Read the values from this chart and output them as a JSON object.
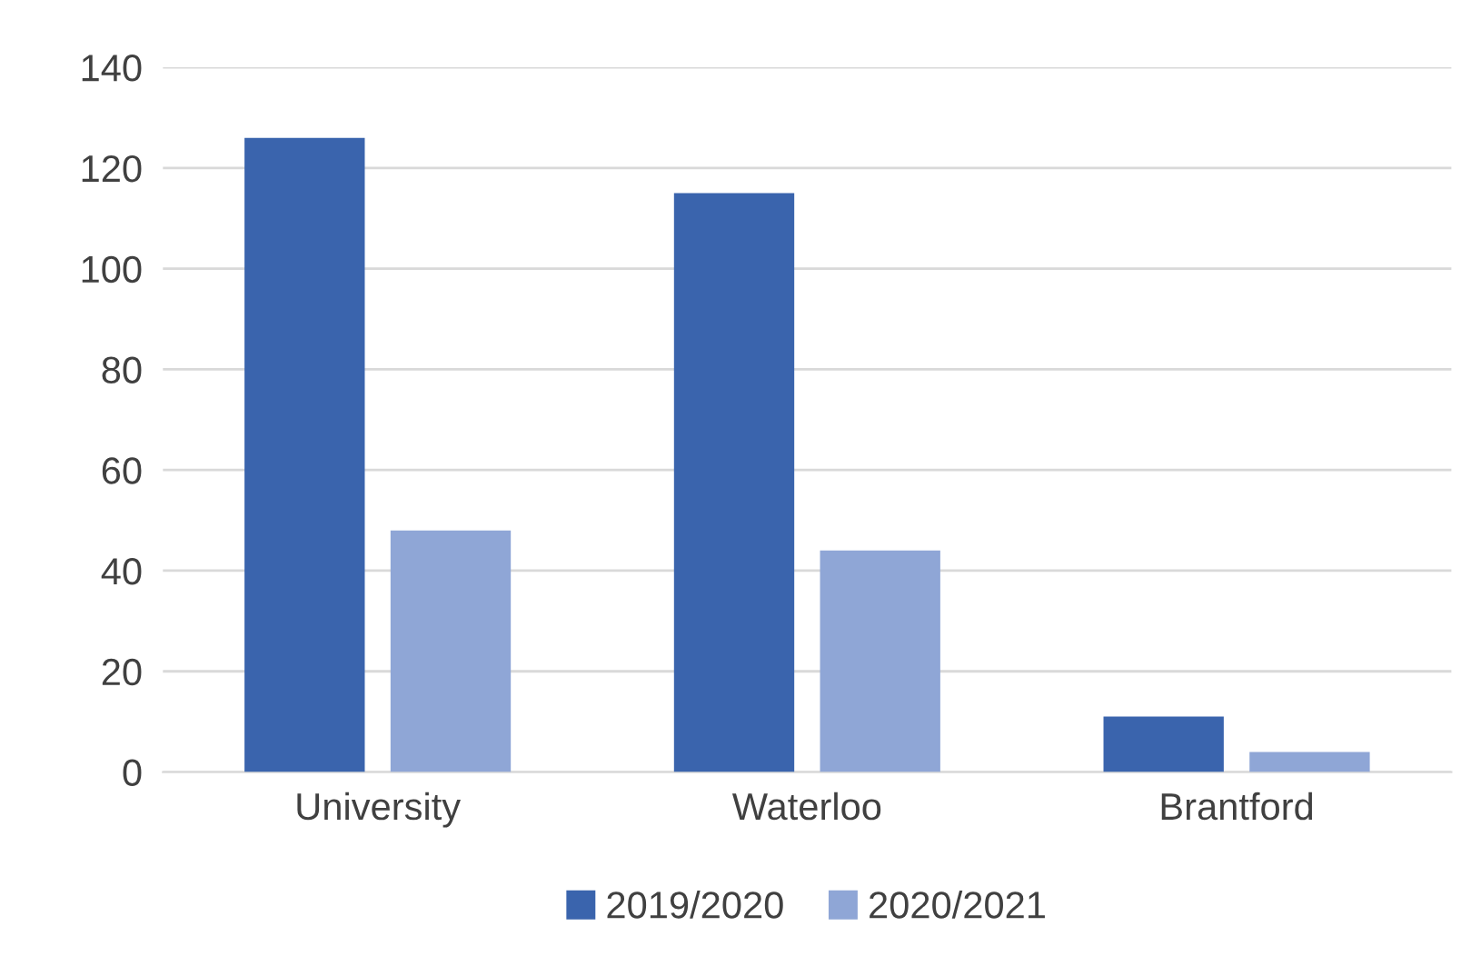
{
  "chart_data": {
    "type": "bar",
    "categories": [
      "University",
      "Waterloo",
      "Brantford"
    ],
    "series": [
      {
        "name": "2019/2020",
        "color": "#3a64ad",
        "values": [
          126,
          115,
          11
        ]
      },
      {
        "name": "2020/2021",
        "color": "#8fa6d6",
        "values": [
          48,
          44,
          4
        ]
      }
    ],
    "ylim": [
      0,
      140
    ],
    "yticks": [
      0,
      20,
      40,
      60,
      80,
      100,
      120,
      140
    ],
    "grid": "y",
    "legend": "bottom"
  }
}
